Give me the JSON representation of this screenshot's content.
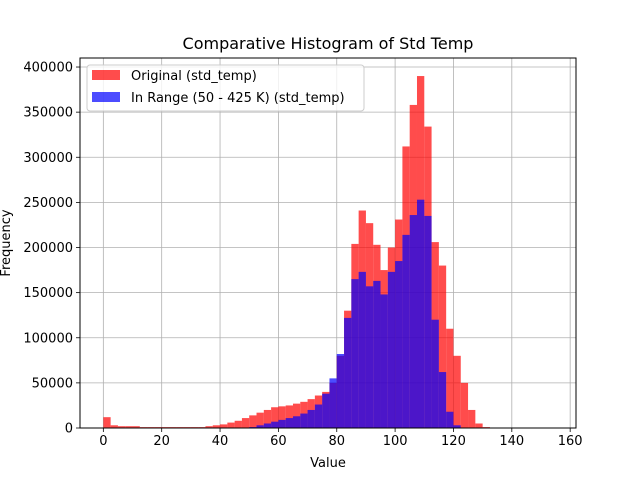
{
  "chart_data": {
    "type": "bar",
    "title": "Comparative Histogram of Std Temp",
    "xlabel": "Value",
    "ylabel": "Frequency",
    "xlim": [
      -8,
      162
    ],
    "ylim": [
      0,
      410000
    ],
    "x_ticks": [
      0,
      20,
      40,
      60,
      80,
      100,
      120,
      140,
      160
    ],
    "y_ticks": [
      0,
      50000,
      100000,
      150000,
      200000,
      250000,
      300000,
      350000,
      400000
    ],
    "grid": true,
    "legend_position": "top-left",
    "bin_width": 2.5,
    "bin_start": 0,
    "series": [
      {
        "name": "Original (std_temp)",
        "color": "#ff0000",
        "alpha": 0.7,
        "values": [
          12000,
          3000,
          2000,
          2000,
          2000,
          1000,
          1000,
          1000,
          1000,
          1000,
          1000,
          1000,
          1000,
          1000,
          2000,
          3000,
          4000,
          6000,
          8000,
          11000,
          14000,
          17000,
          20000,
          23000,
          24000,
          25000,
          27000,
          29000,
          32000,
          36000,
          40000,
          50000,
          80000,
          130000,
          204000,
          241000,
          227000,
          203000,
          175000,
          200000,
          231000,
          312000,
          358000,
          390000,
          334000,
          206000,
          180000,
          110000,
          80000,
          50000,
          20000,
          5000,
          1000,
          0,
          0,
          0,
          0,
          0,
          0,
          0,
          0,
          0
        ]
      },
      {
        "name": "In Range (50 - 425 K) (std_temp)",
        "color": "#0000ff",
        "alpha": 0.7,
        "values": [
          0,
          0,
          0,
          0,
          0,
          0,
          0,
          0,
          0,
          0,
          0,
          0,
          0,
          0,
          0,
          0,
          0,
          0,
          0,
          0,
          1000,
          3000,
          5000,
          7000,
          9000,
          11000,
          13000,
          16000,
          20000,
          26000,
          38000,
          55000,
          82000,
          122000,
          165000,
          173000,
          157000,
          163000,
          148000,
          173000,
          185000,
          214000,
          236000,
          253000,
          235000,
          120000,
          62000,
          18000,
          3000,
          0,
          0,
          0,
          0,
          0,
          0,
          0,
          0,
          0,
          0,
          0,
          0,
          0
        ]
      }
    ]
  }
}
